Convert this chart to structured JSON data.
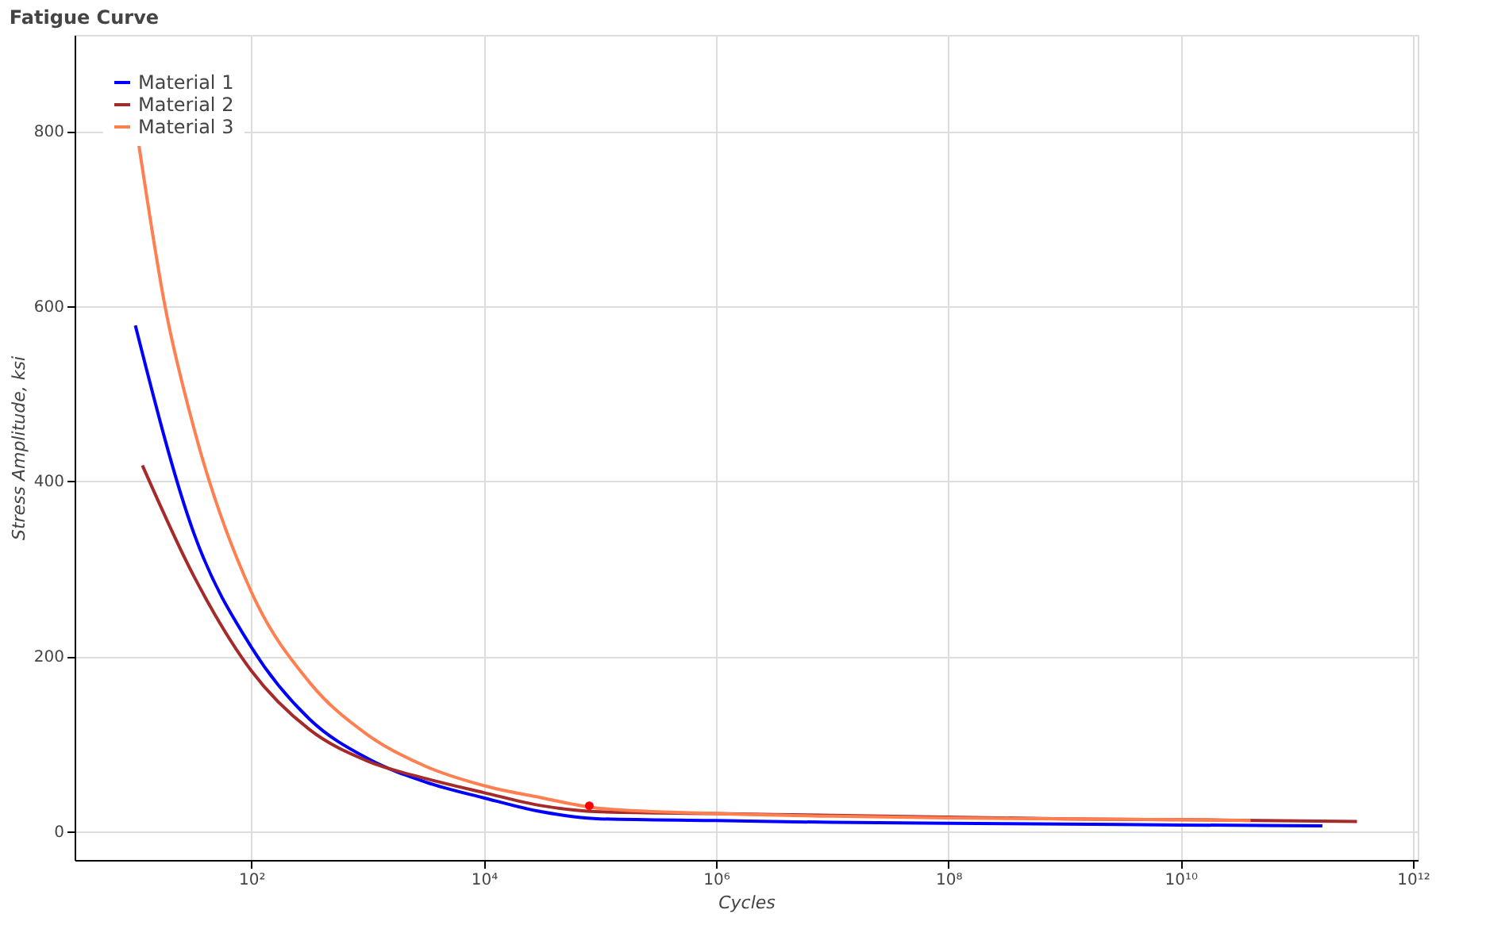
{
  "chart_data": {
    "type": "line",
    "title": "Fatigue Curve",
    "xlabel": "Cycles",
    "ylabel": "Stress Amplitude, ksi",
    "log": "x",
    "grid": true,
    "legend": "top left",
    "line_style": "solid",
    "xlim": [
      3,
      1100000000000
    ],
    "ylim": [
      -33,
      910
    ],
    "xticks": [
      {
        "value": 100,
        "label": "10²"
      },
      {
        "value": 10000,
        "label": "10⁴"
      },
      {
        "value": 1000000,
        "label": "10⁶"
      },
      {
        "value": 100000000,
        "label": "10⁸"
      },
      {
        "value": 10000000000,
        "label": "10¹⁰"
      },
      {
        "value": 1000000000000,
        "label": "10¹²"
      }
    ],
    "yticks": [
      0,
      200,
      400,
      600,
      800
    ],
    "series": [
      {
        "name": "Material 1",
        "color": "#0000ff",
        "x": [
          10,
          32,
          100,
          316,
          1000,
          3162,
          10000,
          31623,
          100000,
          1000000,
          10000000,
          100000000,
          1000000000,
          10000000000,
          166000000000
        ],
        "values": [
          578,
          340,
          210,
          128,
          83,
          56,
          38,
          22,
          14,
          12,
          10,
          9,
          8,
          7,
          6
        ]
      },
      {
        "name": "Material 2",
        "color": "#a52a2a",
        "x": [
          11.5,
          32,
          100,
          316,
          1000,
          3162,
          10000,
          31623,
          100000,
          1000000,
          10000000,
          100000000,
          1000000000,
          10000000000,
          330000000000
        ],
        "values": [
          418,
          291,
          183,
          116,
          80,
          60,
          44,
          29,
          22,
          20,
          18,
          16,
          14,
          13,
          11
        ]
      },
      {
        "name": "Material 3",
        "color": "#ff7f50",
        "x": [
          10.7,
          18,
          32,
          100,
          316,
          1000,
          3162,
          10000,
          31623,
          100000,
          1000000,
          10000000,
          100000000,
          1000000000,
          10000000000,
          40000000000
        ],
        "values": [
          785,
          600,
          460,
          273,
          170,
          110,
          74,
          52,
          38,
          26,
          20,
          17,
          15,
          14,
          13,
          12
        ]
      },
      {
        "type": "scatter",
        "color": "#ff0000",
        "x": [
          81000
        ],
        "values": [
          29
        ]
      }
    ]
  }
}
